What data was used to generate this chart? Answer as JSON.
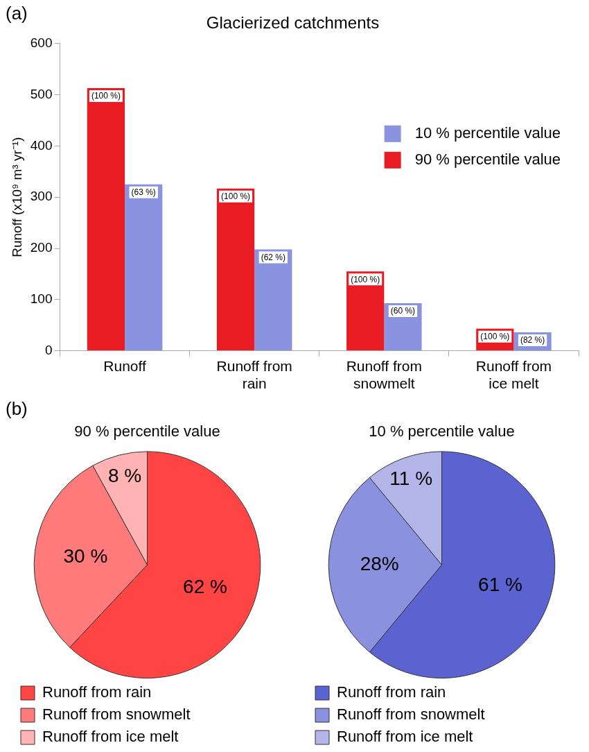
{
  "chart_data": [
    {
      "type": "bar",
      "title": "Glacierized catchments",
      "ylabel": "Runoff (x10⁹ m³ yr⁻¹)",
      "annotations": [
        "(a)",
        {
          "text": "(100 %)",
          "x": "Runoff",
          "y": 513
        },
        {
          "text": "(100 %)",
          "x": "Runoff from rain",
          "y": 317
        },
        {
          "text": "(100 %)",
          "x": "Runoff from snowmelt",
          "y": 155
        },
        {
          "text": "(100 %)",
          "x": "Runoff from ice melt",
          "y": 43
        },
        {
          "text": "(63 %)",
          "x": "Runoff",
          "y": 325
        },
        {
          "text": "(62 %)",
          "x": "Runoff from rain",
          "y": 198
        },
        {
          "text": "(60 %)",
          "x": "Runoff from snowmelt",
          "y": 93
        },
        {
          "text": "(82 %)",
          "x": "Runoff from ice melt",
          "y": 36
        }
      ],
      "categories": [
        "Runoff",
        "Runoff from rain",
        "Runoff from snowmelt",
        "Runoff from ice melt"
      ],
      "series": [
        {
          "name": "90 % percentile value",
          "color": "#e91c24",
          "values": [
            513,
            317,
            155,
            43
          ]
        },
        {
          "name": "10 % percentile value",
          "color": "#8a93df",
          "values": [
            325,
            198,
            93,
            36
          ]
        }
      ],
      "ylim": [
        0,
        600
      ],
      "yticks": [
        0,
        100,
        200,
        300,
        400,
        500,
        600
      ],
      "grid": false,
      "legend": "top right"
    },
    {
      "type": "pie",
      "title": "90 % percentile value",
      "annotations": [
        "(b)"
      ],
      "categories": [
        "Runoff from rain",
        "Runoff from snowmelt",
        "Runoff from ice melt"
      ],
      "values": [
        62,
        30,
        8
      ],
      "colors": [
        "#ff4444",
        "#ff7a7a",
        "#ffb3b3"
      ],
      "value_labels": [
        "62 %",
        "30 %",
        "8 %"
      ],
      "legend": "bottom"
    },
    {
      "type": "pie",
      "title": "10 % percentile value",
      "categories": [
        "Runoff from rain",
        "Runoff from snowmelt",
        "Runoff from ice melt"
      ],
      "values": [
        61,
        28,
        11
      ],
      "colors": [
        "#5b63d0",
        "#8a91df",
        "#b3b5e8"
      ],
      "value_labels": [
        "61 %",
        "28%",
        "11 %"
      ],
      "legend": "bottom"
    }
  ]
}
